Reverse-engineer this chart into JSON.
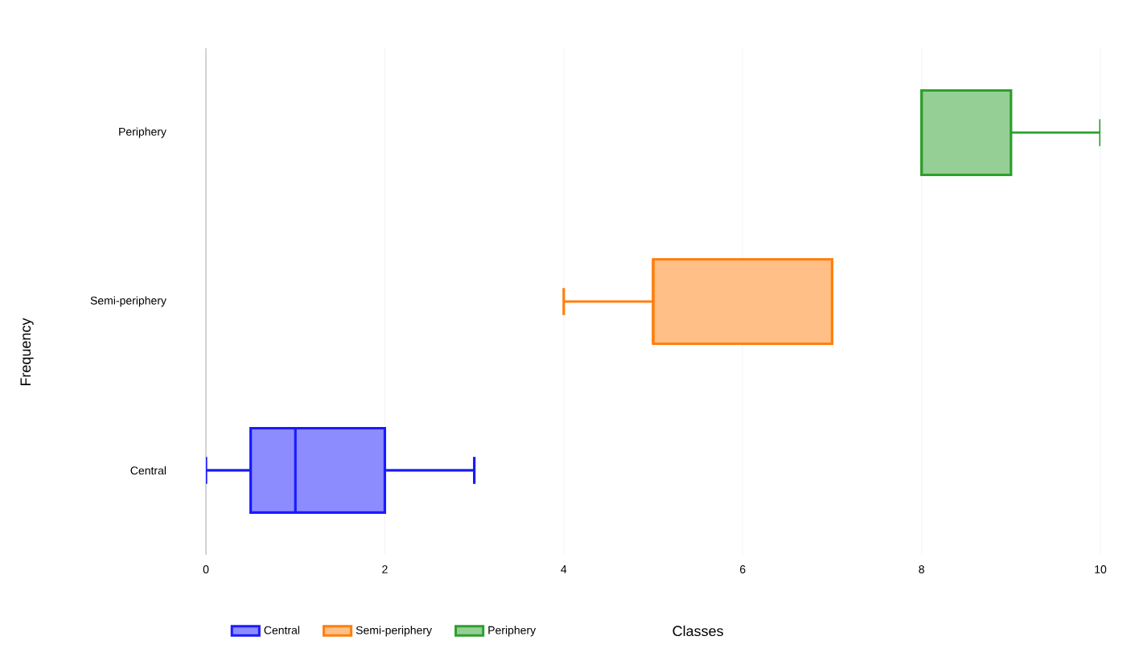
{
  "chart_data": {
    "type": "box",
    "orientation": "horizontal",
    "xlabel": "Classes",
    "ylabel": "Frequency",
    "categories": [
      "Periphery",
      "Semi-periphery",
      "Central"
    ],
    "xlim": [
      0,
      10
    ],
    "xticks": [
      0,
      2,
      4,
      6,
      8,
      10
    ],
    "grid": "x",
    "legend": "bottom",
    "series": [
      {
        "name": "Central",
        "color": "#1a1aff",
        "boxes": [
          null,
          null,
          {
            "low": 0,
            "q1": 0.5,
            "median": 1,
            "q3": 2,
            "high": 3
          }
        ]
      },
      {
        "name": "Semi-periphery",
        "color": "#ff7f0e",
        "boxes": [
          null,
          {
            "low": 4,
            "q1": 5,
            "median": 5,
            "q3": 7,
            "high": 7
          },
          null
        ]
      },
      {
        "name": "Periphery",
        "color": "#2ca02c",
        "boxes": [
          {
            "low": 8,
            "q1": 8,
            "median": 8,
            "q3": 9,
            "high": 10
          },
          null,
          null
        ]
      }
    ]
  }
}
